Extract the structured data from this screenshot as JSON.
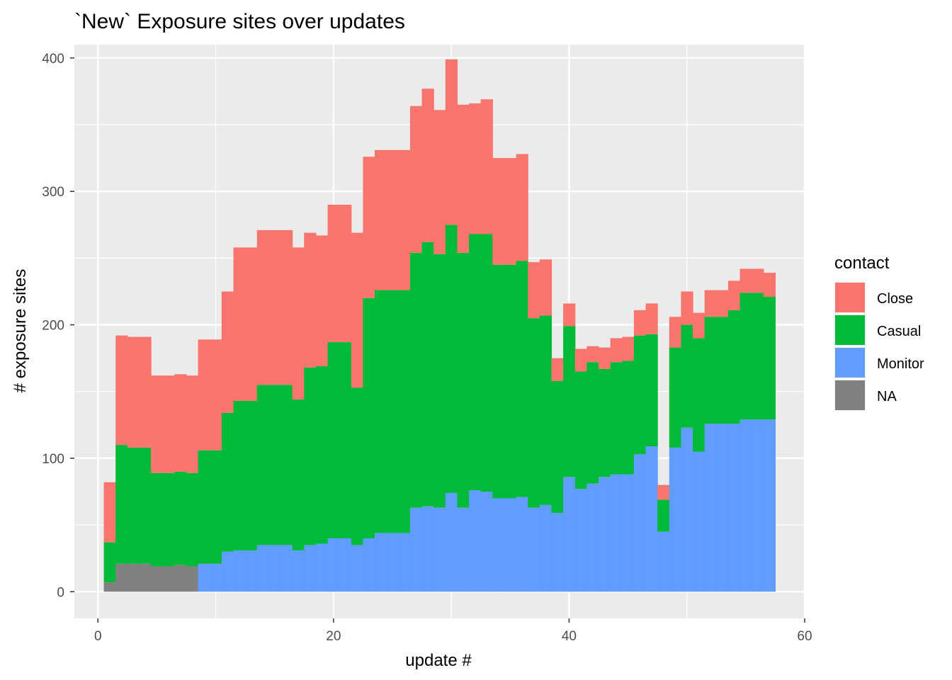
{
  "chart_data": {
    "type": "bar",
    "title": "`New` Exposure sites over updates",
    "xlabel": "update #",
    "ylabel": "# exposure sites",
    "xlim": [
      -2,
      60
    ],
    "ylim": [
      -20,
      410
    ],
    "xticks": [
      0,
      20,
      40,
      60
    ],
    "yticks": [
      0,
      100,
      200,
      300,
      400
    ],
    "grid": true,
    "stacked": true,
    "legend": {
      "title": "contact",
      "position": "right",
      "entries": [
        {
          "label": "Close",
          "color": "#F8766D"
        },
        {
          "label": "Casual",
          "color": "#00BA38"
        },
        {
          "label": "Monitor",
          "color": "#619CFF"
        },
        {
          "label": "NA",
          "color": "#808080"
        }
      ]
    },
    "x": [
      1,
      2,
      3,
      4,
      5,
      6,
      7,
      8,
      9,
      10,
      11,
      12,
      13,
      14,
      15,
      16,
      17,
      18,
      19,
      20,
      21,
      22,
      23,
      24,
      25,
      26,
      27,
      28,
      29,
      30,
      31,
      32,
      33,
      34,
      35,
      36,
      37,
      38,
      39,
      40,
      41,
      42,
      43,
      44,
      45,
      46,
      47,
      48,
      49,
      50,
      51,
      52,
      53,
      54,
      55,
      56,
      57
    ],
    "series": [
      {
        "name": "NA",
        "color": "#808080",
        "values": [
          7,
          21,
          21,
          21,
          19,
          19,
          20,
          19,
          0,
          0,
          0,
          0,
          0,
          0,
          0,
          0,
          0,
          0,
          0,
          0,
          0,
          0,
          0,
          0,
          0,
          0,
          0,
          0,
          0,
          0,
          0,
          0,
          0,
          0,
          0,
          0,
          0,
          0,
          0,
          0,
          0,
          0,
          0,
          0,
          0,
          0,
          0,
          0,
          0,
          0,
          0,
          0,
          0,
          0,
          0,
          0,
          0
        ]
      },
      {
        "name": "Monitor",
        "color": "#619CFF",
        "values": [
          0,
          0,
          0,
          0,
          0,
          0,
          0,
          0,
          21,
          21,
          30,
          31,
          31,
          35,
          35,
          35,
          31,
          35,
          36,
          40,
          40,
          35,
          40,
          44,
          44,
          44,
          63,
          64,
          63,
          74,
          63,
          76,
          75,
          70,
          70,
          71,
          63,
          65,
          59,
          86,
          77,
          81,
          86,
          88,
          88,
          103,
          109,
          45,
          108,
          123,
          105,
          126,
          126,
          126,
          129,
          129,
          129
        ]
      },
      {
        "name": "Casual",
        "color": "#00BA38",
        "values": [
          30,
          89,
          87,
          87,
          70,
          70,
          70,
          70,
          85,
          85,
          104,
          112,
          112,
          120,
          120,
          120,
          113,
          133,
          133,
          147,
          147,
          118,
          180,
          182,
          182,
          182,
          191,
          198,
          190,
          201,
          191,
          192,
          193,
          175,
          175,
          177,
          142,
          142,
          99,
          113,
          88,
          91,
          81,
          84,
          85,
          89,
          84,
          24,
          75,
          77,
          85,
          80,
          80,
          85,
          95,
          95,
          92
        ]
      },
      {
        "name": "Close",
        "color": "#F8766D",
        "values": [
          45,
          82,
          83,
          83,
          73,
          73,
          73,
          73,
          83,
          83,
          91,
          115,
          115,
          116,
          116,
          116,
          114,
          101,
          98,
          103,
          103,
          116,
          106,
          105,
          105,
          105,
          110,
          115,
          108,
          124,
          111,
          98,
          101,
          80,
          80,
          80,
          42,
          42,
          17,
          17,
          17,
          12,
          16,
          18,
          18,
          19,
          23,
          11,
          23,
          25,
          19,
          20,
          20,
          22,
          18,
          18,
          18
        ]
      }
    ]
  }
}
